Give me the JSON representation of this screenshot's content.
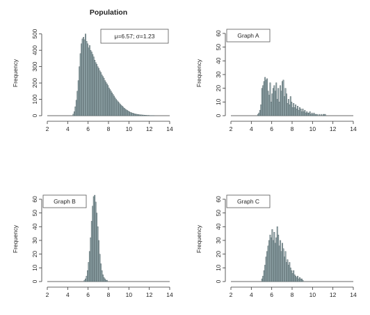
{
  "chart_data": [
    {
      "type": "bar",
      "title": "Population",
      "ylabel": "Frequency",
      "legend": "μ=6.57; σ=1.23",
      "legend_position": "top-right",
      "xlim": [
        2,
        14
      ],
      "xticks": [
        2,
        4,
        6,
        8,
        10,
        12,
        14
      ],
      "ylim": [
        0,
        520
      ],
      "yticks": [
        0,
        100,
        200,
        300,
        400,
        500
      ],
      "bin_width": 0.1,
      "x": [
        4.5,
        4.6,
        4.7,
        4.8,
        4.9,
        5.0,
        5.1,
        5.2,
        5.3,
        5.4,
        5.5,
        5.6,
        5.7,
        5.8,
        5.9,
        6.0,
        6.1,
        6.2,
        6.3,
        6.4,
        6.5,
        6.6,
        6.7,
        6.8,
        6.9,
        7.0,
        7.1,
        7.2,
        7.3,
        7.4,
        7.5,
        7.6,
        7.7,
        7.8,
        7.9,
        8.0,
        8.1,
        8.2,
        8.3,
        8.4,
        8.5,
        8.6,
        8.7,
        8.8,
        8.9,
        9.0,
        9.1,
        9.2,
        9.3,
        9.4,
        9.5,
        9.6,
        9.7,
        9.8,
        9.9,
        10.0,
        10.1,
        10.2,
        10.3,
        10.4,
        10.5,
        10.6,
        10.7,
        10.8,
        10.9,
        11.0,
        11.1,
        11.2,
        11.3,
        11.4,
        11.5,
        11.6,
        11.7,
        11.8,
        11.9,
        12.0,
        12.1,
        12.2,
        12.3,
        12.4
      ],
      "values": [
        10,
        25,
        55,
        95,
        150,
        215,
        300,
        380,
        440,
        470,
        480,
        465,
        500,
        455,
        440,
        415,
        430,
        400,
        390,
        375,
        360,
        340,
        325,
        315,
        300,
        290,
        275,
        265,
        250,
        240,
        230,
        215,
        205,
        195,
        185,
        170,
        160,
        150,
        140,
        130,
        120,
        110,
        100,
        92,
        85,
        78,
        70,
        64,
        58,
        52,
        46,
        40,
        36,
        32,
        28,
        24,
        21,
        18,
        16,
        14,
        12,
        10,
        9,
        8,
        7,
        6,
        5,
        5,
        4,
        4,
        3,
        3,
        2,
        2,
        2,
        1,
        1,
        1,
        1,
        1
      ]
    },
    {
      "type": "bar",
      "title": "",
      "ylabel": "Frequency",
      "legend": "Graph A",
      "legend_position": "top-left",
      "xlim": [
        2,
        14
      ],
      "xticks": [
        2,
        4,
        6,
        8,
        10,
        12,
        14
      ],
      "ylim": [
        0,
        62
      ],
      "yticks": [
        0,
        10,
        20,
        30,
        40,
        50,
        60
      ],
      "bin_width": 0.1,
      "x": [
        4.6,
        4.7,
        4.8,
        4.9,
        5.0,
        5.1,
        5.2,
        5.3,
        5.4,
        5.5,
        5.6,
        5.7,
        5.8,
        5.9,
        6.0,
        6.1,
        6.2,
        6.3,
        6.4,
        6.5,
        6.6,
        6.7,
        6.8,
        6.9,
        7.0,
        7.1,
        7.2,
        7.3,
        7.4,
        7.5,
        7.6,
        7.7,
        7.8,
        7.9,
        8.0,
        8.1,
        8.2,
        8.3,
        8.4,
        8.5,
        8.6,
        8.7,
        8.8,
        8.9,
        9.0,
        9.1,
        9.2,
        9.3,
        9.4,
        9.5,
        9.6,
        9.7,
        9.8,
        9.9,
        10.0,
        10.1,
        10.2,
        10.3,
        10.4,
        10.5,
        10.6,
        10.7,
        10.8,
        10.9,
        11.0,
        11.1,
        11.2
      ],
      "values": [
        1,
        2,
        4,
        8,
        20,
        22,
        25,
        28,
        26,
        27,
        18,
        15,
        24,
        10,
        16,
        20,
        22,
        18,
        24,
        12,
        20,
        10,
        22,
        18,
        25,
        26,
        14,
        20,
        16,
        9,
        12,
        8,
        14,
        10,
        6,
        9,
        6,
        8,
        5,
        7,
        4,
        6,
        5,
        3,
        5,
        3,
        4,
        2,
        3,
        2,
        2,
        3,
        1,
        2,
        1,
        2,
        1,
        1,
        1,
        0,
        1,
        0,
        1,
        0,
        1,
        1,
        1
      ]
    },
    {
      "type": "bar",
      "title": "",
      "ylabel": "Frequency",
      "legend": "Graph B",
      "legend_position": "top-left",
      "xlim": [
        2,
        14
      ],
      "xticks": [
        2,
        4,
        6,
        8,
        10,
        12,
        14
      ],
      "ylim": [
        0,
        62
      ],
      "yticks": [
        0,
        10,
        20,
        30,
        40,
        50,
        60
      ],
      "bin_width": 0.1,
      "x": [
        5.6,
        5.7,
        5.8,
        5.9,
        6.0,
        6.1,
        6.2,
        6.3,
        6.4,
        6.5,
        6.6,
        6.7,
        6.8,
        6.9,
        7.0,
        7.1,
        7.2,
        7.3,
        7.4,
        7.5,
        7.6,
        7.7,
        7.8
      ],
      "values": [
        1,
        2,
        4,
        8,
        14,
        22,
        32,
        44,
        55,
        62,
        63,
        58,
        50,
        40,
        30,
        20,
        13,
        8,
        5,
        3,
        2,
        1,
        1
      ]
    },
    {
      "type": "bar",
      "title": "",
      "ylabel": "Frequency",
      "legend": "Graph C",
      "legend_position": "top-left",
      "xlim": [
        2,
        14
      ],
      "xticks": [
        2,
        4,
        6,
        8,
        10,
        12,
        14
      ],
      "ylim": [
        0,
        62
      ],
      "yticks": [
        0,
        10,
        20,
        30,
        40,
        50,
        60
      ],
      "bin_width": 0.1,
      "x": [
        5.0,
        5.1,
        5.2,
        5.3,
        5.4,
        5.5,
        5.6,
        5.7,
        5.8,
        5.9,
        6.0,
        6.1,
        6.2,
        6.3,
        6.4,
        6.5,
        6.6,
        6.7,
        6.8,
        6.9,
        7.0,
        7.1,
        7.2,
        7.3,
        7.4,
        7.5,
        7.6,
        7.7,
        7.8,
        7.9,
        8.0,
        8.1,
        8.2,
        8.3,
        8.4,
        8.5,
        8.6,
        8.7,
        8.8,
        8.9,
        9.0
      ],
      "values": [
        2,
        4,
        8,
        12,
        18,
        22,
        26,
        30,
        34,
        32,
        38,
        30,
        36,
        28,
        32,
        40,
        34,
        26,
        30,
        22,
        28,
        24,
        18,
        22,
        14,
        16,
        12,
        14,
        10,
        8,
        6,
        8,
        5,
        4,
        3,
        4,
        2,
        3,
        2,
        2,
        1
      ]
    }
  ]
}
